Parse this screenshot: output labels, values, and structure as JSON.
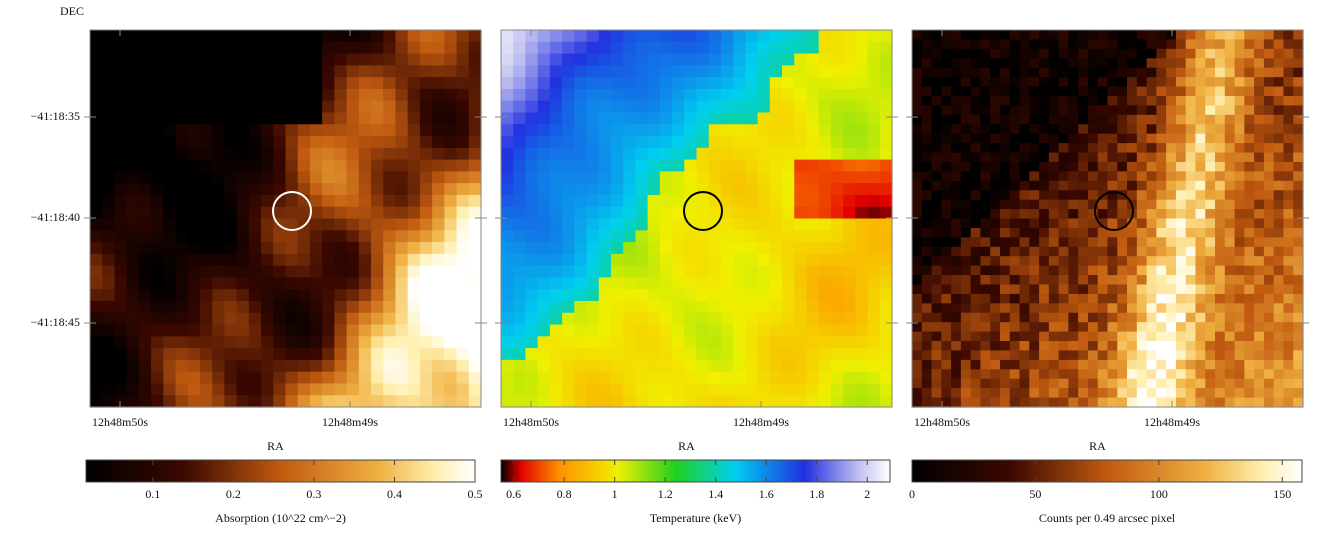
{
  "dec_label": "DEC",
  "dec_ticks": [
    "−41:18:35",
    "−41:18:40",
    "−41:18:45"
  ],
  "panels": [
    {
      "ra_label": "RA",
      "ra_ticks": [
        "12h48m50s",
        "12h48m49s"
      ],
      "colorbar": {
        "label": "Absorption (10^22 cm^−2)",
        "lim": [
          0.017,
          0.5
        ],
        "ticks": [
          0.1,
          0.2,
          0.3,
          0.4,
          0.5
        ]
      }
    },
    {
      "ra_label": "RA",
      "ra_ticks": [
        "12h48m50s",
        "12h48m49s"
      ],
      "colorbar": {
        "label": "Temperature (keV)",
        "lim": [
          0.55,
          2.09
        ],
        "ticks": [
          0.6,
          0.8,
          1,
          1.2,
          1.4,
          1.6,
          1.8,
          2
        ]
      }
    },
    {
      "ra_label": "RA",
      "ra_ticks": [
        "12h48m50s",
        "12h48m49s"
      ],
      "colorbar": {
        "label": "Counts per 0.49 arcsec pixel",
        "lim": [
          0,
          158
        ],
        "ticks": [
          0,
          50,
          100,
          150
        ]
      }
    }
  ]
}
